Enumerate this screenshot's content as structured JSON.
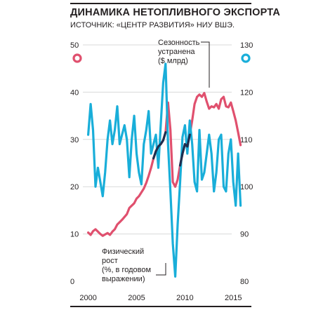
{
  "header": {
    "title": "ДИНАМИКА НЕТОПЛИВНОГО ЭКСПОРТА",
    "source": "ИСТОЧНИК: «ЦЕНТР РАЗВИТИЯ» НИУ ВШЭ."
  },
  "colors": {
    "seasonal": "#e0506e",
    "growth": "#19aed9",
    "overlap": "#1d2e4f",
    "text": "#231f20"
  },
  "chart_data": {
    "type": "line",
    "x_ticks": [
      "2000",
      "2005",
      "2010",
      "2015"
    ],
    "xlim": [
      1999.3,
      2016.0
    ],
    "left_axis": {
      "ticks": [
        "0",
        "10",
        "20",
        "30",
        "40",
        "50"
      ],
      "ylim": [
        0,
        50
      ]
    },
    "right_axis": {
      "ticks": [
        "80",
        "90",
        "100",
        "110",
        "120",
        "130"
      ],
      "ylim": [
        80,
        130
      ]
    },
    "series": [
      {
        "name": "Сезонность устранена ($ млрд)",
        "axis": "left",
        "color": "#e0506e",
        "x": [
          2000.0,
          2000.25,
          2000.5,
          2000.75,
          2001.0,
          2001.25,
          2001.5,
          2001.75,
          2002.0,
          2002.25,
          2002.5,
          2002.75,
          2003.0,
          2003.25,
          2003.5,
          2003.75,
          2004.0,
          2004.25,
          2004.5,
          2004.75,
          2005.0,
          2005.25,
          2005.5,
          2005.75,
          2006.0,
          2006.25,
          2006.5,
          2006.75,
          2007.0,
          2007.25,
          2007.5,
          2007.75,
          2008.0,
          2008.25,
          2008.5,
          2008.75,
          2009.0,
          2009.25,
          2009.5,
          2009.75,
          2010.0,
          2010.25,
          2010.5,
          2010.75,
          2011.0,
          2011.25,
          2011.5,
          2011.75,
          2012.0,
          2012.25,
          2012.5,
          2012.75,
          2013.0,
          2013.25,
          2013.5,
          2013.75,
          2014.0,
          2014.25,
          2014.5,
          2014.75,
          2015.0,
          2015.25,
          2015.5,
          2015.75
        ],
        "values": [
          10.3,
          9.8,
          10.6,
          11.0,
          10.5,
          10.0,
          9.6,
          9.9,
          10.2,
          9.8,
          10.5,
          11.0,
          12.0,
          12.5,
          13.0,
          13.6,
          14.2,
          15.5,
          16.0,
          16.5,
          17.5,
          18.0,
          18.8,
          19.6,
          20.8,
          22.3,
          24.0,
          26.0,
          27.5,
          28.5,
          29.0,
          29.8,
          31.5,
          37.8,
          32.0,
          21.0,
          20.0,
          21.5,
          24.5,
          27.0,
          29.0,
          28.5,
          31.0,
          34.0,
          37.5,
          39.0,
          39.5,
          39.0,
          39.8,
          38.0,
          36.5,
          37.0,
          36.8,
          37.5,
          36.5,
          38.5,
          39.0,
          37.0,
          36.8,
          37.8,
          36.0,
          34.0,
          31.5,
          28.8
        ]
      },
      {
        "name": "Физический рост (%, в годовом выражении)",
        "axis": "right",
        "color": "#19aed9",
        "x": [
          2000.0,
          2000.25,
          2000.5,
          2000.75,
          2001.0,
          2001.25,
          2001.5,
          2001.75,
          2002.0,
          2002.25,
          2002.5,
          2002.75,
          2003.0,
          2003.25,
          2003.5,
          2003.75,
          2004.0,
          2004.25,
          2004.5,
          2004.75,
          2005.0,
          2005.25,
          2005.5,
          2005.75,
          2006.0,
          2006.25,
          2006.5,
          2006.75,
          2007.0,
          2007.25,
          2007.5,
          2007.75,
          2008.0,
          2008.25,
          2008.5,
          2008.75,
          2009.0,
          2009.25,
          2009.5,
          2009.75,
          2010.0,
          2010.25,
          2010.5,
          2010.75,
          2011.0,
          2011.25,
          2011.5,
          2011.75,
          2012.0,
          2012.25,
          2012.5,
          2012.75,
          2013.0,
          2013.25,
          2013.5,
          2013.75,
          2014.0,
          2014.25,
          2014.5,
          2014.75,
          2015.0,
          2015.25,
          2015.5,
          2015.75
        ],
        "values": [
          111,
          117.5,
          112,
          100,
          104,
          101,
          98,
          103,
          110,
          114,
          109,
          112,
          117,
          109,
          111,
          113,
          110,
          102,
          110,
          115,
          107,
          103,
          100.5,
          109,
          112,
          116,
          107,
          109,
          111,
          104,
          113,
          122,
          126,
          109,
          99,
          88,
          81,
          92,
          101,
          110.5,
          113,
          107,
          114,
          109,
          101,
          99,
          112,
          101.5,
          103,
          107,
          111,
          107,
          99,
          103,
          110,
          111,
          100,
          99,
          107,
          110,
          101,
          96,
          107,
          96
        ]
      }
    ],
    "annotations": {
      "seasonal_label": [
        "Сезонность",
        "устранена",
        "($ млрд)"
      ],
      "growth_label": [
        "Физический",
        "рост",
        "(%, в годовом",
        "выражении)"
      ]
    }
  }
}
